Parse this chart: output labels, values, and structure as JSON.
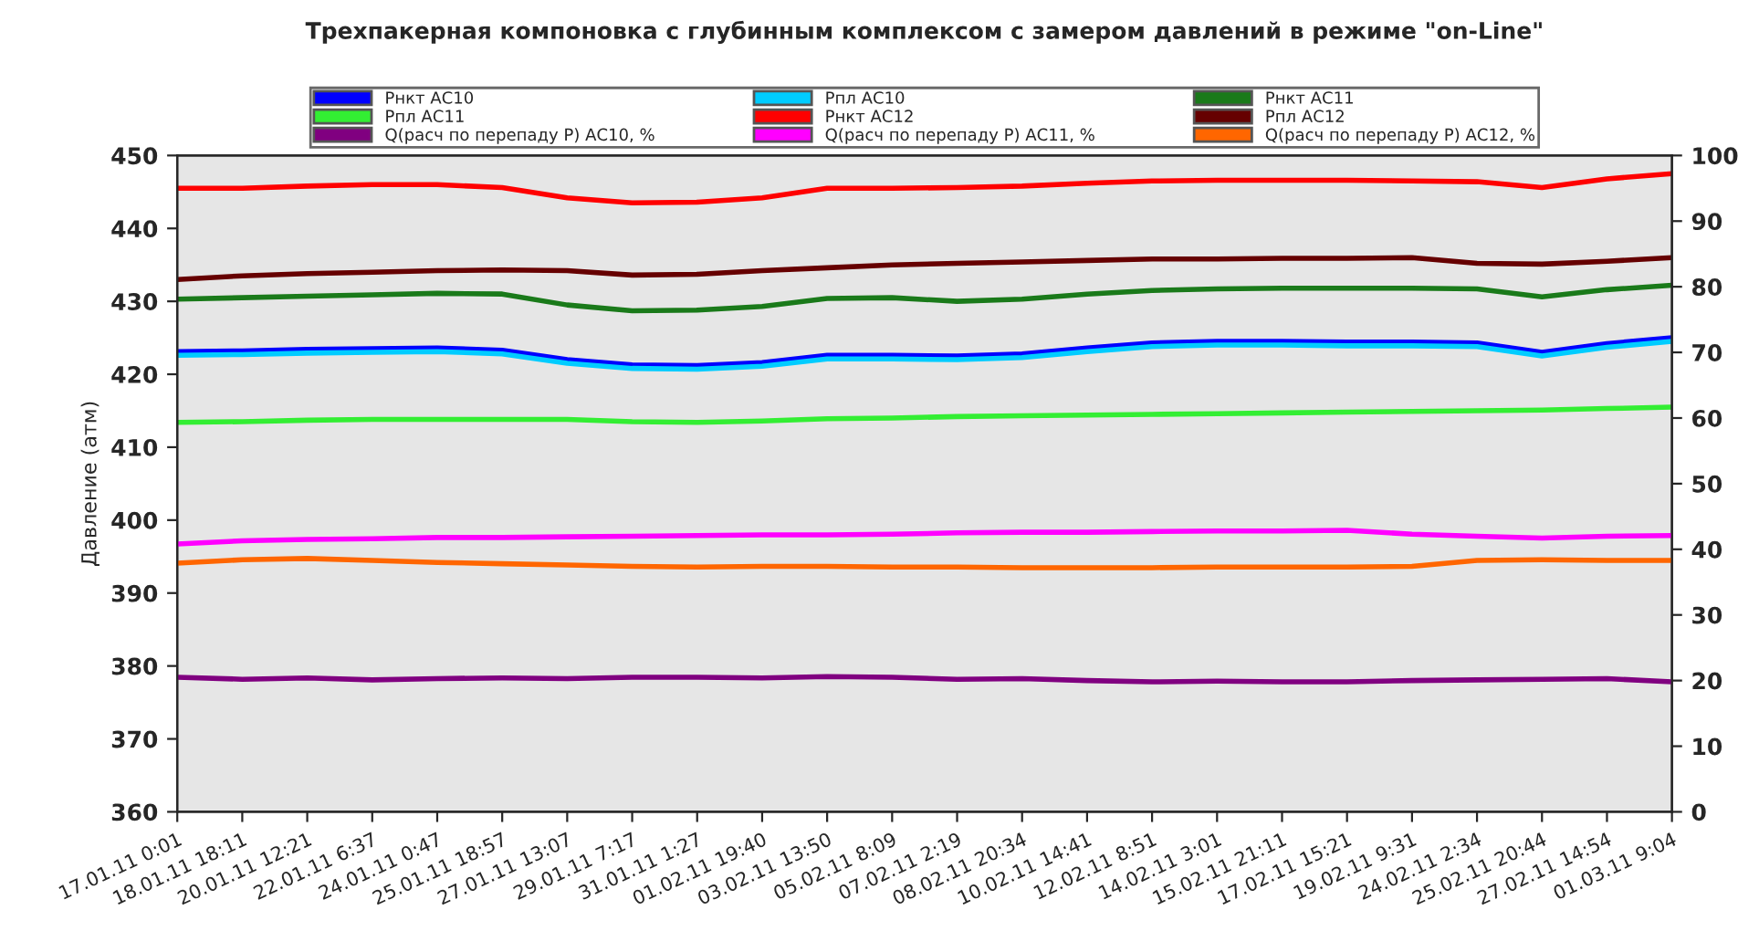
{
  "chart_data": {
    "type": "line",
    "title": "Трехпакерная компоновка с глубинным комплексом с замером давлений в режиме \"on-Line\"",
    "ylabel": "Давление (атм)",
    "categories": [
      "17.01.11 0:01",
      "18.01.11 18:11",
      "20.01.11 12:21",
      "22.01.11 6:37",
      "24.01.11 0:47",
      "25.01.11 18:57",
      "27.01.11 13:07",
      "29.01.11 7:17",
      "31.01.11 1:27",
      "01.02.11 19:40",
      "03.02.11 13:50",
      "05.02.11 8:09",
      "07.02.11 2:19",
      "08.02.11 20:34",
      "10.02.11 14:41",
      "12.02.11 8:51",
      "14.02.11 3:01",
      "15.02.11 21:11",
      "17.02.11 15:21",
      "19.02.11 9:31",
      "24.02.11 2:34",
      "25.02.11 20:44",
      "27.02.11 14:54",
      "01.03.11 9:04"
    ],
    "ylim": [
      360,
      450
    ],
    "yticks": [
      360,
      370,
      380,
      390,
      400,
      410,
      420,
      430,
      440,
      450
    ],
    "y2lim": [
      0,
      100
    ],
    "y2ticks": [
      0,
      10,
      20,
      30,
      40,
      50,
      60,
      70,
      80,
      90,
      100
    ],
    "legend": "top",
    "grid": false,
    "series": [
      {
        "name": "Рнкт АС10",
        "color": "#0000ff",
        "values": [
          423.1,
          423.2,
          423.4,
          423.5,
          423.6,
          423.3,
          422,
          421.3,
          421.2,
          421.6,
          422.6,
          422.6,
          422.5,
          422.8,
          423.6,
          424.3,
          424.5,
          424.5,
          424.4,
          424.4,
          424.3,
          423,
          424.2,
          425
        ]
      },
      {
        "name": "Рпл АС10",
        "color": "#00ccff",
        "values": [
          422.6,
          422.7,
          422.9,
          423,
          423.1,
          422.8,
          421.5,
          420.8,
          420.7,
          421.1,
          422.1,
          422.1,
          422,
          422.3,
          423.1,
          423.8,
          424,
          424,
          423.9,
          423.9,
          423.8,
          422.5,
          423.7,
          424.5
        ]
      },
      {
        "name": "Рнкт АС11",
        "color": "#1a7a1a",
        "values": [
          430.3,
          430.5,
          430.7,
          430.9,
          431.1,
          431,
          429.5,
          428.7,
          428.8,
          429.3,
          430.4,
          430.5,
          430,
          430.3,
          431,
          431.5,
          431.7,
          431.8,
          431.8,
          431.8,
          431.7,
          430.6,
          431.6,
          432.2
        ]
      },
      {
        "name": "Рпл АС11",
        "color": "#33ee33",
        "values": [
          413.4,
          413.5,
          413.7,
          413.8,
          413.8,
          413.8,
          413.8,
          413.5,
          413.4,
          413.6,
          413.9,
          414,
          414.2,
          414.3,
          414.4,
          414.5,
          414.6,
          414.7,
          414.8,
          414.9,
          415,
          415.1,
          415.3,
          415.5
        ]
      },
      {
        "name": "Рнкт АС12",
        "color": "#ff0000",
        "values": [
          445.5,
          445.5,
          445.8,
          446,
          446,
          445.6,
          444.2,
          443.5,
          443.6,
          444.2,
          445.5,
          445.5,
          445.6,
          445.8,
          446.2,
          446.5,
          446.6,
          446.6,
          446.6,
          446.5,
          446.4,
          445.6,
          446.8,
          447.5
        ]
      },
      {
        "name": "Рпл АС12",
        "color": "#660000",
        "values": [
          433,
          433.5,
          433.8,
          434,
          434.2,
          434.3,
          434.2,
          433.6,
          433.7,
          434.2,
          434.6,
          435,
          435.2,
          435.4,
          435.6,
          435.8,
          435.8,
          435.9,
          435.9,
          436,
          435.2,
          435.1,
          435.5,
          436
        ]
      },
      {
        "name": "Q(расч по перепаду Р) АС10, %",
        "color": "#800080",
        "axis": "y2",
        "values": [
          20.5,
          20.2,
          20.4,
          20.1,
          20.3,
          20.4,
          20.3,
          20.5,
          20.5,
          20.4,
          20.6,
          20.5,
          20.2,
          20.3,
          20,
          19.8,
          19.9,
          19.8,
          19.8,
          20,
          20.1,
          20.2,
          20.3,
          19.8
        ]
      },
      {
        "name": "Q(расч по перепаду Р) АС11, %",
        "color": "#ff00ff",
        "axis": "y2",
        "values": [
          40.8,
          41.3,
          41.5,
          41.6,
          41.8,
          41.8,
          41.9,
          42,
          42.1,
          42.2,
          42.2,
          42.3,
          42.5,
          42.6,
          42.6,
          42.7,
          42.8,
          42.8,
          42.9,
          42.3,
          42,
          41.7,
          42,
          42.1
        ]
      },
      {
        "name": "Q(расч по перепаду Р) АС12, %",
        "color": "#ff6600",
        "axis": "y2",
        "values": [
          37.9,
          38.4,
          38.6,
          38.3,
          38,
          37.8,
          37.6,
          37.4,
          37.3,
          37.4,
          37.4,
          37.3,
          37.3,
          37.2,
          37.2,
          37.2,
          37.3,
          37.3,
          37.3,
          37.4,
          38.3,
          38.4,
          38.3,
          38.3
        ]
      }
    ]
  }
}
